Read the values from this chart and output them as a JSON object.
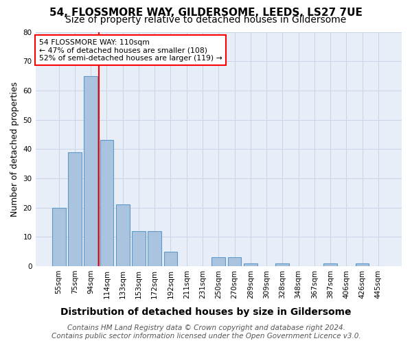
{
  "title": "54, FLOSSMORE WAY, GILDERSOME, LEEDS, LS27 7UE",
  "subtitle": "Size of property relative to detached houses in Gildersome",
  "xlabel": "Distribution of detached houses by size in Gildersome",
  "ylabel": "Number of detached properties",
  "bar_labels": [
    "55sqm",
    "75sqm",
    "94sqm",
    "114sqm",
    "133sqm",
    "153sqm",
    "172sqm",
    "192sqm",
    "211sqm",
    "231sqm",
    "250sqm",
    "270sqm",
    "289sqm",
    "309sqm",
    "328sqm",
    "348sqm",
    "367sqm",
    "387sqm",
    "406sqm",
    "426sqm",
    "445sqm"
  ],
  "bar_values": [
    20,
    39,
    65,
    43,
    21,
    12,
    12,
    5,
    0,
    0,
    3,
    3,
    1,
    0,
    1,
    0,
    0,
    1,
    0,
    1,
    0
  ],
  "bar_color": "#aac4df",
  "bar_edge_color": "#5b98c8",
  "vline_x": 2.5,
  "annotation_text": "54 FLOSSMORE WAY: 110sqm\n← 47% of detached houses are smaller (108)\n52% of semi-detached houses are larger (119) →",
  "annotation_box_facecolor": "white",
  "annotation_box_edgecolor": "red",
  "vline_color": "red",
  "ylim_min": 0,
  "ylim_max": 80,
  "yticks": [
    0,
    10,
    20,
    30,
    40,
    50,
    60,
    70,
    80
  ],
  "grid_color": "#c8d4e8",
  "plot_bg_color": "#e8eef8",
  "footer_line1": "Contains HM Land Registry data © Crown copyright and database right 2024.",
  "footer_line2": "Contains public sector information licensed under the Open Government Licence v3.0.",
  "title_fontsize": 11,
  "subtitle_fontsize": 10,
  "xlabel_fontsize": 10,
  "ylabel_fontsize": 9,
  "tick_fontsize": 7.5,
  "footer_fontsize": 7.5
}
